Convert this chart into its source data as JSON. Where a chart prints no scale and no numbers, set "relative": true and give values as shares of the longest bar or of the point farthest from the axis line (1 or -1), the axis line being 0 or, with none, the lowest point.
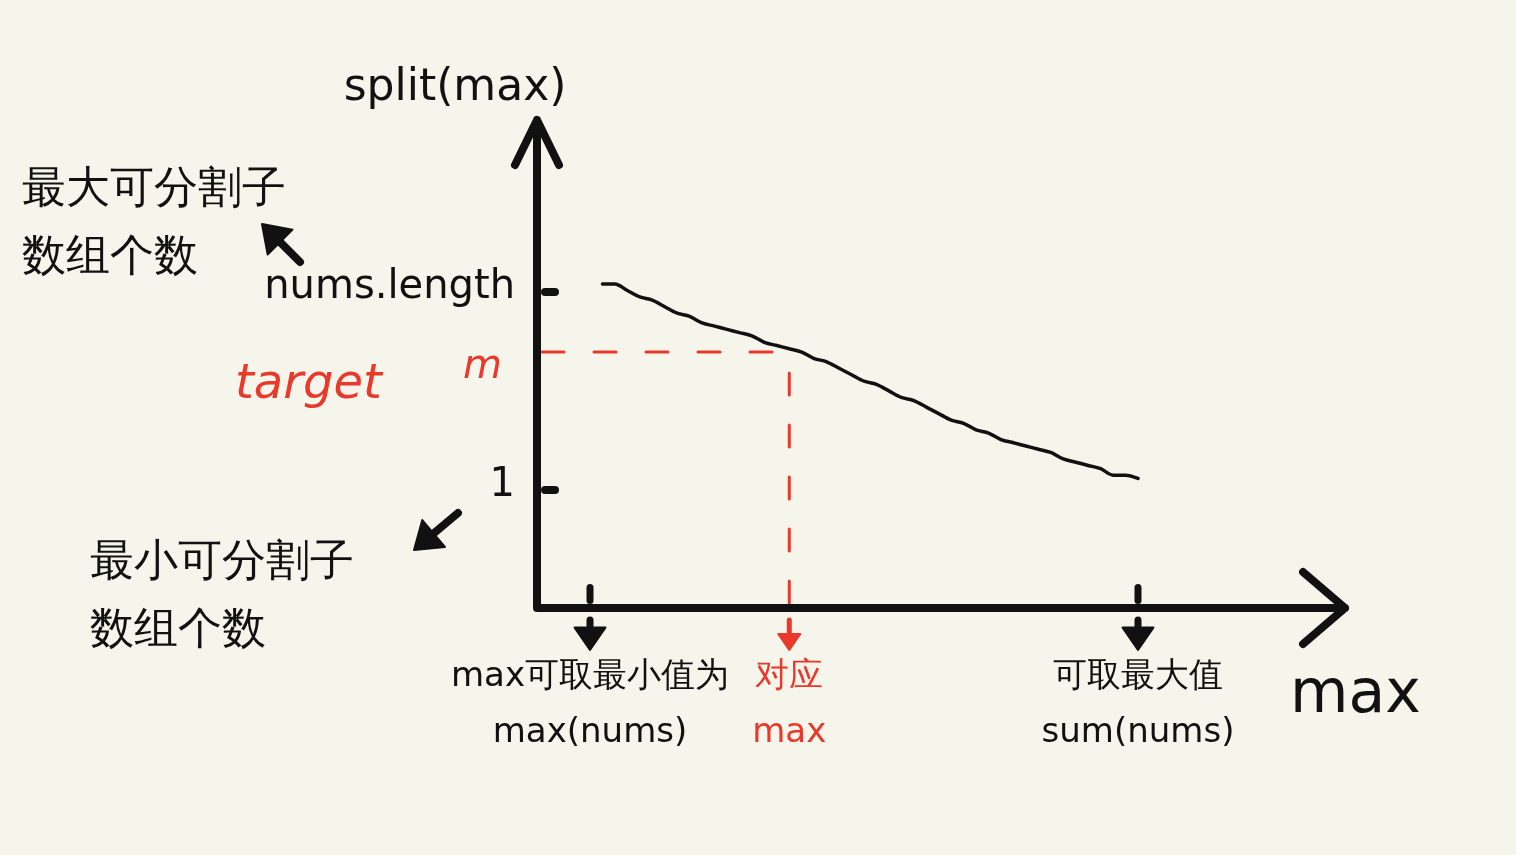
{
  "chart_data": {
    "type": "line",
    "relative": true,
    "ylabel": "split(max)",
    "xlabel": "max",
    "categories": [
      "max可取最小值为max(nums)",
      null,
      null,
      null,
      null,
      null,
      null,
      null,
      null,
      null,
      null,
      null,
      null,
      null,
      null,
      null,
      "对应max",
      null,
      null,
      null,
      null,
      null,
      null,
      null,
      null,
      null,
      null,
      null,
      null,
      null,
      null,
      null,
      null,
      null,
      null,
      null,
      null,
      null,
      null,
      null,
      null,
      null,
      null,
      null,
      "可取最大值sum(nums)"
    ],
    "series": [
      {
        "color": "#111111",
        "values": [
          null,
          1.0,
          1.0,
          0.98,
          0.96,
          0.95,
          0.93,
          0.91,
          0.9,
          0.88,
          0.87,
          0.86,
          0.85,
          0.84,
          0.82,
          0.81,
          0.8,
          0.79,
          0.77,
          0.76,
          0.74,
          0.72,
          0.7,
          0.69,
          0.67,
          0.65,
          0.64,
          0.62,
          0.6,
          0.58,
          0.57,
          0.55,
          0.54,
          0.52,
          0.51,
          0.5,
          0.49,
          0.48,
          0.46,
          0.45,
          0.44,
          0.43,
          0.41,
          0.41,
          0.4
        ]
      }
    ],
    "ref_lines": [
      {
        "axis": "y",
        "value": 0.79,
        "label": "target m",
        "color": "#e8392b",
        "line_style": "dashed"
      },
      {
        "axis": "x",
        "value": "对应max",
        "color": "#e8392b",
        "line_style": "dashed"
      }
    ],
    "annotations": [
      "nums.length",
      "1",
      "最大可分割子数组个数",
      "最小可分割子数组个数"
    ]
  }
}
